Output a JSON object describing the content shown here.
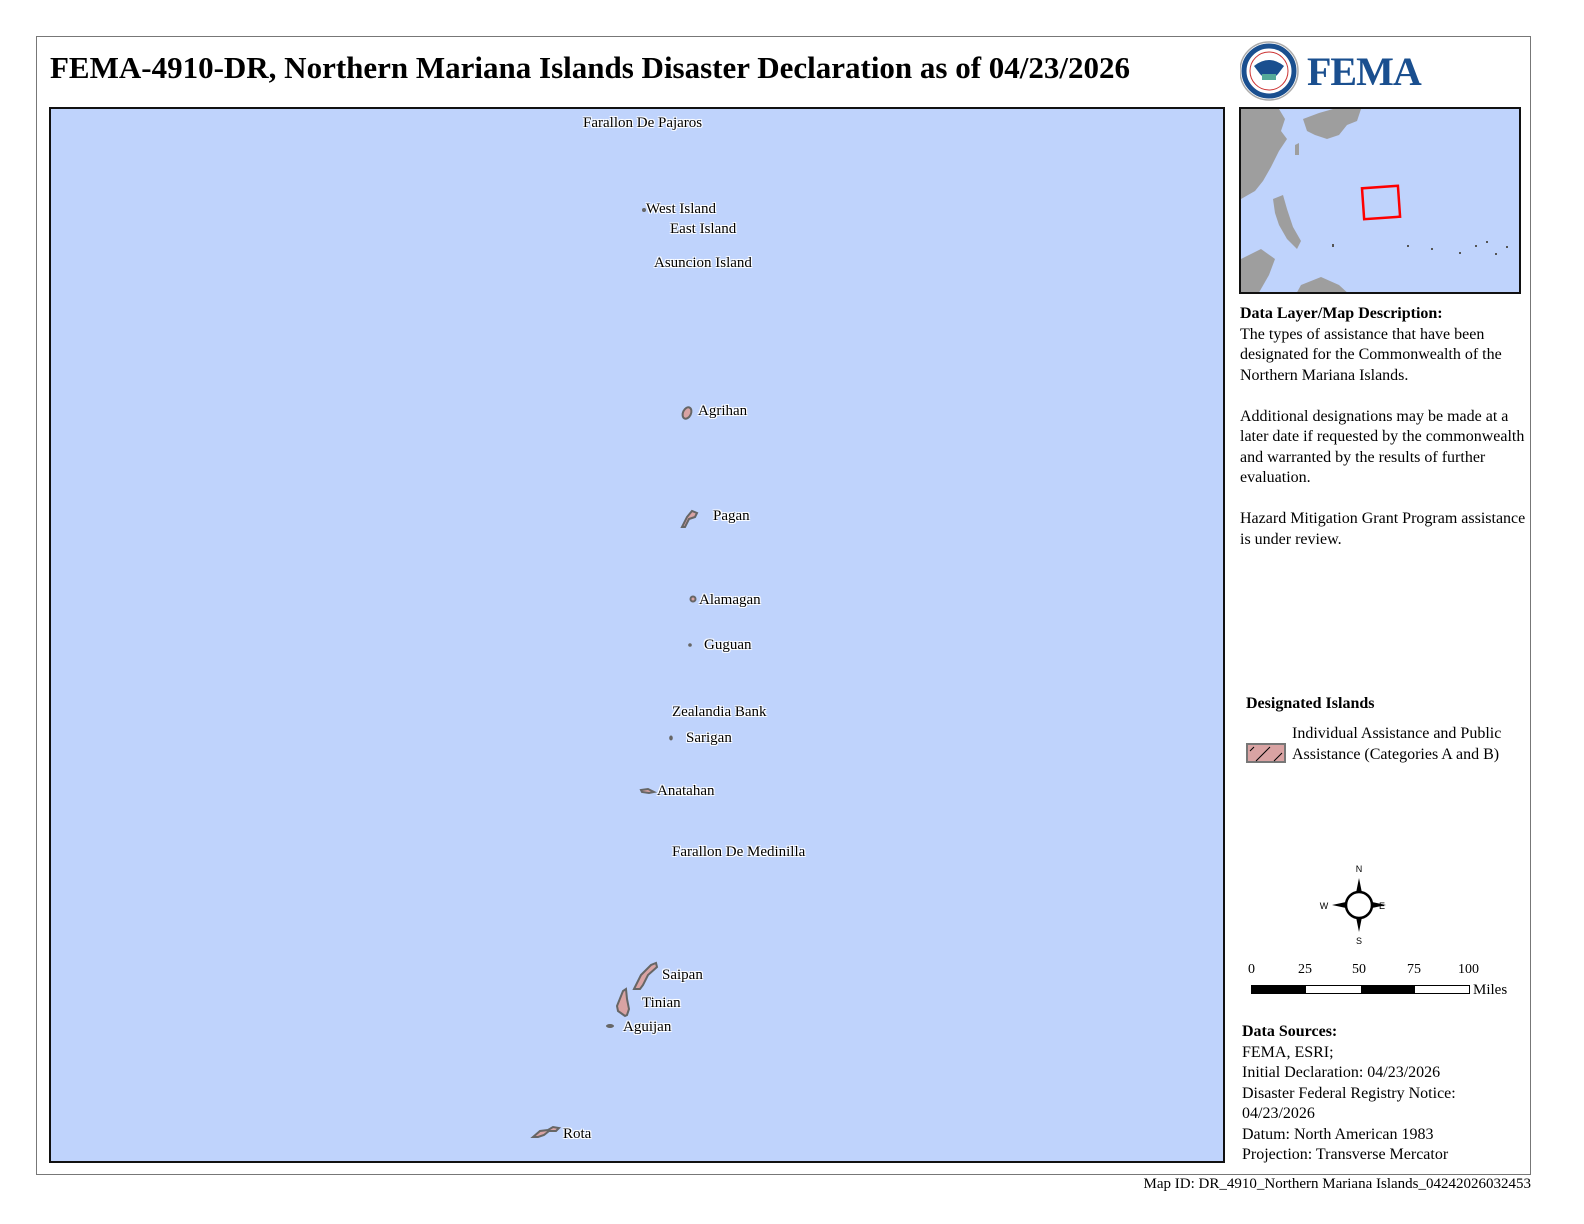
{
  "title": "FEMA-4910-DR, Northern Mariana Islands Disaster Declaration as of 04/23/2026",
  "logo": {
    "agency": "FEMA",
    "seal_text": "U.S. DEPARTMENT OF HOMELAND SECURITY"
  },
  "map": {
    "ocean_color": "#bfd3fc",
    "designated_fill": "#d9a3a3",
    "islands": [
      {
        "name": "Farallon De Pajaros",
        "designated": false
      },
      {
        "name": "West Island",
        "designated": false
      },
      {
        "name": "East Island",
        "designated": false
      },
      {
        "name": "Asuncion Island",
        "designated": false
      },
      {
        "name": "Agrihan",
        "designated": true
      },
      {
        "name": "Pagan",
        "designated": true
      },
      {
        "name": "Alamagan",
        "designated": true
      },
      {
        "name": "Guguan",
        "designated": false
      },
      {
        "name": "Zealandia Bank",
        "designated": false
      },
      {
        "name": "Sarigan",
        "designated": false
      },
      {
        "name": "Anatahan",
        "designated": true
      },
      {
        "name": "Farallon De Medinilla",
        "designated": false
      },
      {
        "name": "Saipan",
        "designated": true
      },
      {
        "name": "Tinian",
        "designated": true
      },
      {
        "name": "Aguijan",
        "designated": false
      },
      {
        "name": "Rota",
        "designated": true
      }
    ]
  },
  "inset": {
    "land_color": "#9e9e9e",
    "extent_box_color": "#ff0000"
  },
  "description": {
    "heading": "Data Layer/Map Description:",
    "p1": "The types of assistance that have been designated for the Commonwealth of the Northern Mariana Islands.",
    "p2": "Additional designations may be made at a later date if requested by the commonwealth and warranted by the results of further evaluation.",
    "p3": "Hazard Mitigation Grant Program assistance is under review."
  },
  "legend": {
    "title": "Designated Islands",
    "item": "Individual Assistance and Public Assistance (Categories A and B)"
  },
  "compass": {
    "n": "N",
    "s": "S",
    "e": "E",
    "w": "W"
  },
  "scale": {
    "ticks": [
      "0",
      "25",
      "50",
      "75",
      "100"
    ],
    "unit": "Miles"
  },
  "sources": {
    "heading": "Data Sources:",
    "lines": [
      "FEMA, ESRI;",
      "Initial Declaration: 04/23/2026",
      "Disaster Federal Registry Notice:",
      "04/23/2026",
      "Datum: North American 1983",
      "Projection: Transverse Mercator"
    ]
  },
  "map_id": "Map ID: DR_4910_Northern Mariana Islands_04242026032453"
}
